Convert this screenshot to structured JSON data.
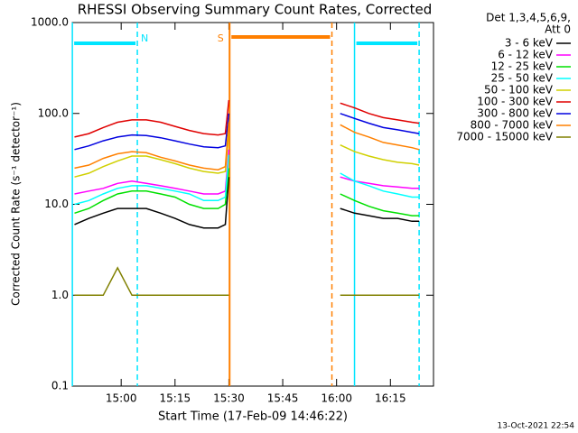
{
  "chart_data": {
    "type": "line",
    "title": "RHESSI Observing Summary Count Rates, Corrected",
    "xlabel": "Start Time (17-Feb-09 14:46:22)",
    "ylabel": "Corrected Count Rate (s⁻¹ detector⁻¹)",
    "legend_header": [
      "Det 1,3,4,5,6,9,",
      "Att 0"
    ],
    "footer": "13-Oct-2021 22:54",
    "log_y": true,
    "xlim": [
      46.37,
      147
    ],
    "ylim": [
      0.1,
      1000
    ],
    "xticks": [
      {
        "value": 60,
        "label": "15:00"
      },
      {
        "value": 75,
        "label": "15:15"
      },
      {
        "value": 90,
        "label": "15:30"
      },
      {
        "value": 105,
        "label": "15:45"
      },
      {
        "value": 120,
        "label": "16:00"
      },
      {
        "value": 135,
        "label": "16:15"
      }
    ],
    "yticks": [
      {
        "value": 0.1,
        "label": "0.1"
      },
      {
        "value": 1,
        "label": "1.0"
      },
      {
        "value": 10,
        "label": "10.0"
      },
      {
        "value": 100,
        "label": "100.0"
      },
      {
        "value": 1000,
        "label": "1000.0"
      }
    ],
    "regions": [
      {
        "label": "N",
        "color": "#00e5ff",
        "start": 46.4,
        "end": 64.5
      },
      {
        "label": "S",
        "color": "#ff7f00",
        "start": 90.2,
        "end": 118.7
      },
      {
        "color": "#00e5ff",
        "start": 125,
        "end": 143
      }
    ],
    "x": [
      47,
      51,
      55,
      59,
      63,
      67,
      71,
      75,
      79,
      83,
      87,
      89,
      90,
      105,
      121,
      125,
      129,
      133,
      137,
      141,
      143
    ],
    "series": [
      {
        "name": "3 - 6 keV",
        "color": "#000000",
        "values": [
          6,
          7,
          8,
          9,
          9,
          9,
          8,
          7,
          6,
          5.5,
          5.5,
          6,
          20,
          null,
          9,
          8,
          7.5,
          7,
          7,
          6.5,
          6.5
        ]
      },
      {
        "name": "6 - 12 keV",
        "color": "#ff00ff",
        "values": [
          13,
          14,
          15,
          17,
          18,
          17,
          16,
          15,
          14,
          13,
          13,
          14,
          40,
          null,
          20,
          18,
          17,
          16,
          15.5,
          15,
          15
        ]
      },
      {
        "name": "12 - 25 keV",
        "color": "#00e000",
        "values": [
          8,
          9,
          11,
          13,
          14,
          14,
          13,
          12,
          10,
          9,
          9,
          10,
          25,
          null,
          13,
          11,
          9.5,
          8.5,
          8,
          7.5,
          7.5
        ]
      },
      {
        "name": "25 - 50 keV",
        "color": "#00ffff",
        "values": [
          10,
          11,
          13,
          15,
          16,
          16,
          15,
          14,
          13,
          11,
          11,
          12,
          35,
          null,
          22,
          18,
          16,
          14,
          13,
          12,
          12
        ]
      },
      {
        "name": "50 - 100 keV",
        "color": "#d0d000",
        "values": [
          20,
          22,
          26,
          30,
          34,
          34,
          31,
          28,
          25,
          23,
          22,
          23,
          60,
          null,
          45,
          38,
          34,
          31,
          29,
          28,
          27
        ]
      },
      {
        "name": "100 - 300 keV",
        "color": "#e00000",
        "values": [
          55,
          60,
          70,
          80,
          85,
          85,
          80,
          72,
          65,
          60,
          58,
          60,
          140,
          null,
          130,
          115,
          100,
          90,
          85,
          80,
          78
        ]
      },
      {
        "name": "300 - 800 keV",
        "color": "#0000e0",
        "values": [
          40,
          44,
          50,
          55,
          58,
          57,
          54,
          50,
          46,
          43,
          42,
          44,
          100,
          null,
          100,
          88,
          78,
          70,
          66,
          62,
          60
        ]
      },
      {
        "name": "800 - 7000 keV",
        "color": "#ff8000",
        "values": [
          25,
          27,
          32,
          36,
          38,
          37,
          33,
          30,
          27,
          25,
          24,
          26,
          80,
          null,
          75,
          62,
          55,
          48,
          45,
          42,
          40
        ]
      },
      {
        "name": "7000 - 15000 keV",
        "color": "#808000",
        "values": [
          1,
          1,
          1,
          2,
          1,
          1,
          1,
          1,
          1,
          1,
          1,
          1,
          1,
          null,
          1,
          1,
          1,
          1,
          1,
          1,
          1
        ]
      }
    ]
  }
}
